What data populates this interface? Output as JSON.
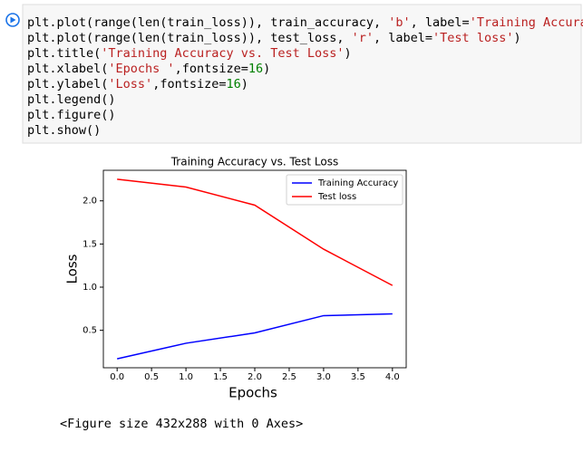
{
  "code_cell": {
    "lines": [
      "plt.plot(range(len(train_loss)), train_accuracy, 'b', label='Training Accuracy')",
      "plt.plot(range(len(train_loss)), test_loss, 'r', label='Test loss')",
      "plt.title('Training Accuracy vs. Test Loss')",
      "plt.xlabel('Epochs ',fontsize=16)",
      "plt.ylabel('Loss',fontsize=16)",
      "plt.legend()",
      "plt.figure()",
      "plt.show()"
    ]
  },
  "chart_data": {
    "type": "line",
    "title": "Training Accuracy vs. Test Loss",
    "x_label": "Epochs",
    "y_label": "Loss",
    "x": [
      0,
      1,
      2,
      3,
      4
    ],
    "series": [
      {
        "name": "Training Accuracy",
        "color": "#0000ff",
        "values": [
          0.17,
          0.35,
          0.47,
          0.67,
          0.69
        ]
      },
      {
        "name": "Test loss",
        "color": "#ff0000",
        "values": [
          2.25,
          2.16,
          1.95,
          1.44,
          1.02
        ]
      }
    ],
    "xlim": [
      -0.2,
      4.2
    ],
    "xticks": [
      {
        "value": 0,
        "label": "0.0"
      },
      0.5,
      {
        "value": 1,
        "label": "1.0"
      },
      1.5,
      {
        "value": 2,
        "label": "2.0"
      },
      2.5,
      {
        "value": 3,
        "label": "3.0"
      },
      3.5,
      {
        "value": 4,
        "label": "4.0"
      }
    ],
    "ylim": [
      0.066,
      2.354
    ],
    "yticks": [
      0.5,
      {
        "value": 1,
        "label": "1.0"
      },
      1.5,
      {
        "value": 2,
        "label": "2.0"
      }
    ],
    "legend": "upper right",
    "grid": false
  },
  "output_text": "<Figure size 432x288 with 0 Axes>"
}
